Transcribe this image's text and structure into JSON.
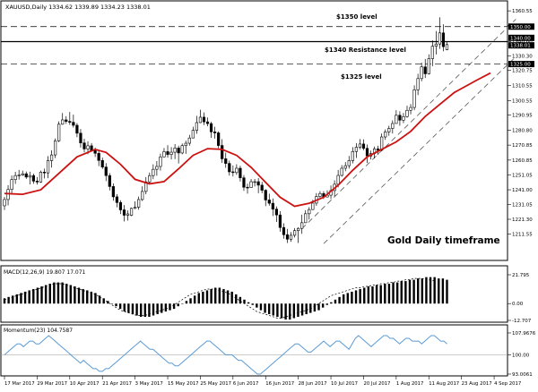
{
  "header": {
    "main_title": "XAUUSD,Daily 1334.62 1339.89 1334.23 1338.01",
    "macd_title": "MACD(12,26,9) 19.807 17.071",
    "momentum_title": "Momentum(23) 104.7587"
  },
  "annotations": {
    "level_1350": "$1350 level",
    "level_1340": "$1340 Resistance level",
    "level_1325": "$1325 level",
    "timeframe": "Gold Daily timeframe"
  },
  "badges": {
    "price_1350": "1350.00",
    "price_1340": "1340.00",
    "price_current": "1338.01",
    "price_1325": "1325.00"
  },
  "colors": {
    "up_candle": "#ffffff",
    "down_candle": "#000000",
    "moving_average": "#cc1111",
    "momentum_line": "#5b9bd5",
    "grid": "#c8c8c8"
  },
  "chart_data": {
    "type": "candlestick",
    "symbol": "XAUUSD",
    "timeframe": "Daily",
    "ylim": [
      1195,
      1366
    ],
    "y_ticks": [
      1360.55,
      1350.75,
      1340.0,
      1330.3,
      1320.75,
      1310.55,
      1300.55,
      1290.95,
      1280.8,
      1270.85,
      1260.85,
      1251.05,
      1241.0,
      1231.05,
      1221.3,
      1211.55
    ],
    "y_tick_labels": [
      "1360.55",
      "1350.75",
      "1340.00",
      "1330.30",
      "1320.75",
      "1310.55",
      "1300.55",
      "1290.95",
      "1280.80",
      "1270.85",
      "1260.85",
      "1251.05",
      "1241.00",
      "1231.05",
      "1221.30",
      "1211.55"
    ],
    "x_tick_labels": [
      "17 Mar 2017",
      "29 Mar 2017",
      "10 Apr 2017",
      "21 Apr 2017",
      "3 May 2017",
      "15 May 2017",
      "25 May 2017",
      "6 Jun 2017",
      "16 Jun 2017",
      "28 Jun 2017",
      "10 Jul 2017",
      "20 Jul 2017",
      "1 Aug 2017",
      "11 Aug 2017",
      "23 Aug 2017",
      "4 Sep 2017"
    ],
    "x_tick_index": [
      0,
      9,
      18,
      27,
      36,
      45,
      54,
      63,
      72,
      81,
      90,
      99,
      108,
      117,
      126,
      135
    ],
    "horizontal_levels": [
      {
        "value": 1350,
        "style": "dashed"
      },
      {
        "value": 1340,
        "style": "solid"
      },
      {
        "value": 1325,
        "style": "dashed"
      }
    ],
    "channel": {
      "upper": [
        [
          82,
          1215
        ],
        [
          141,
          1355
        ]
      ],
      "lower": [
        [
          88,
          1205
        ],
        [
          141,
          1330
        ]
      ]
    },
    "candles": [
      [
        1230.3,
        1236.2,
        1227.5,
        1234.5
      ],
      [
        1234.5,
        1244.1,
        1230.6,
        1241.2
      ],
      [
        1241.2,
        1250.5,
        1238.1,
        1247.8
      ],
      [
        1247.8,
        1253.0,
        1244.9,
        1250.5
      ],
      [
        1250.5,
        1254.3,
        1247.8,
        1250.8
      ],
      [
        1250.8,
        1253.8,
        1250.3,
        1251.7
      ],
      [
        1251.7,
        1253.2,
        1248.3,
        1249.5
      ],
      [
        1249.5,
        1253.1,
        1244.6,
        1250.5
      ],
      [
        1250.5,
        1251.8,
        1245.0,
        1246.8
      ],
      [
        1246.8,
        1249.5,
        1244.5,
        1246.2
      ],
      [
        1246.2,
        1253.8,
        1245.7,
        1252.8
      ],
      [
        1252.8,
        1255.2,
        1248.6,
        1252.3
      ],
      [
        1252.3,
        1263.5,
        1248.7,
        1260.5
      ],
      [
        1260.5,
        1267.4,
        1255.8,
        1264.3
      ],
      [
        1264.3,
        1275.3,
        1262.3,
        1273.7
      ],
      [
        1273.7,
        1286.7,
        1272.9,
        1284.8
      ],
      [
        1284.8,
        1292.3,
        1284.5,
        1287.7
      ],
      [
        1287.7,
        1290.2,
        1285.0,
        1286.7
      ],
      [
        1286.7,
        1293.0,
        1284.4,
        1286.1
      ],
      [
        1286.1,
        1291.2,
        1282.6,
        1284.1
      ],
      [
        1284.1,
        1285.5,
        1276.2,
        1278.8
      ],
      [
        1278.8,
        1281.6,
        1269.2,
        1272.3
      ],
      [
        1272.3,
        1275.1,
        1266.0,
        1268.3
      ],
      [
        1268.3,
        1273.4,
        1264.8,
        1270.4
      ],
      [
        1270.4,
        1272.2,
        1266.4,
        1267.2
      ],
      [
        1267.2,
        1269.2,
        1262.9,
        1265.4
      ],
      [
        1265.4,
        1267.5,
        1256.8,
        1260.6
      ],
      [
        1260.6,
        1262.5,
        1254.9,
        1256.2
      ],
      [
        1256.2,
        1258.8,
        1246.8,
        1250.5
      ],
      [
        1250.5,
        1252.1,
        1240.6,
        1243.2
      ],
      [
        1243.2,
        1245.2,
        1233.7,
        1236.3
      ],
      [
        1236.3,
        1238.1,
        1229.3,
        1232.5
      ],
      [
        1232.5,
        1234.0,
        1224.8,
        1227.6
      ],
      [
        1227.6,
        1230.8,
        1219.9,
        1224.0
      ],
      [
        1224.0,
        1227.2,
        1220.4,
        1224.9
      ],
      [
        1224.0,
        1229.1,
        1223.4,
        1228.6
      ],
      [
        1228.6,
        1233.3,
        1228.1,
        1229.4
      ],
      [
        1229.4,
        1236.5,
        1227.7,
        1234.5
      ],
      [
        1234.5,
        1243.3,
        1233.5,
        1239.9
      ],
      [
        1239.9,
        1249.5,
        1238.0,
        1246.3
      ],
      [
        1246.3,
        1252.5,
        1245.3,
        1250.5
      ],
      [
        1250.5,
        1258.0,
        1248.1,
        1254.7
      ],
      [
        1254.7,
        1260.2,
        1250.4,
        1256.6
      ],
      [
        1256.6,
        1265.2,
        1253.8,
        1263.0
      ],
      [
        1263.0,
        1268.9,
        1262.7,
        1266.5
      ],
      [
        1266.5,
        1270.8,
        1262.5,
        1264.6
      ],
      [
        1264.6,
        1269.5,
        1261.3,
        1266.1
      ],
      [
        1266.1,
        1271.5,
        1261.5,
        1268.9
      ],
      [
        1268.9,
        1270.5,
        1258.6,
        1265.6
      ],
      [
        1265.6,
        1271.9,
        1264.7,
        1270.5
      ],
      [
        1270.5,
        1273.8,
        1265.0,
        1272.1
      ],
      [
        1272.1,
        1277.7,
        1270.5,
        1275.6
      ],
      [
        1275.6,
        1283.1,
        1275.5,
        1280.7
      ],
      [
        1280.7,
        1290.4,
        1278.4,
        1285.9
      ],
      [
        1285.9,
        1294.5,
        1285.6,
        1289.5
      ],
      [
        1289.5,
        1292.7,
        1284.2,
        1286.4
      ],
      [
        1286.4,
        1289.3,
        1283.4,
        1285.2
      ],
      [
        1285.2,
        1286.4,
        1275.7,
        1279.7
      ],
      [
        1279.7,
        1283.1,
        1275.2,
        1279.0
      ],
      [
        1279.0,
        1280.0,
        1268.8,
        1270.6
      ],
      [
        1270.6,
        1274.8,
        1259.0,
        1261.7
      ],
      [
        1261.7,
        1265.8,
        1255.7,
        1258.6
      ],
      [
        1258.6,
        1260.5,
        1250.5,
        1253.0
      ],
      [
        1253.0,
        1257.3,
        1249.9,
        1252.5
      ],
      [
        1252.5,
        1258.1,
        1251.0,
        1255.4
      ],
      [
        1255.4,
        1257.1,
        1246.5,
        1249.0
      ],
      [
        1249.0,
        1250.8,
        1240.3,
        1242.7
      ],
      [
        1242.7,
        1245.1,
        1238.4,
        1242.5
      ],
      [
        1242.5,
        1248.2,
        1242.3,
        1246.4
      ],
      [
        1246.4,
        1248.2,
        1243.2,
        1246.4
      ],
      [
        1246.4,
        1248.8,
        1238.7,
        1244.1
      ],
      [
        1244.1,
        1246.3,
        1238.7,
        1240.7
      ],
      [
        1240.7,
        1241.4,
        1230.1,
        1234.2
      ],
      [
        1234.2,
        1238.4,
        1230.4,
        1232.0
      ],
      [
        1232.0,
        1235.2,
        1223.5,
        1228.1
      ],
      [
        1228.1,
        1229.9,
        1219.5,
        1224.2
      ],
      [
        1224.2,
        1226.7,
        1213.0,
        1215.8
      ],
      [
        1215.8,
        1218.6,
        1208.3,
        1211.0
      ],
      [
        1211.0,
        1214.9,
        1205.5,
        1208.0
      ],
      [
        1208.0,
        1212.7,
        1206.3,
        1210.6
      ],
      [
        1210.6,
        1215.4,
        1209.1,
        1213.7
      ],
      [
        1213.7,
        1216.0,
        1205.5,
        1215.2
      ],
      [
        1215.2,
        1224.4,
        1211.6,
        1219.0
      ],
      [
        1219.0,
        1227.4,
        1218.8,
        1225.0
      ],
      [
        1225.0,
        1229.4,
        1221.1,
        1227.8
      ],
      [
        1227.8,
        1234.3,
        1227.5,
        1232.1
      ],
      [
        1232.1,
        1238.8,
        1230.3,
        1236.5
      ],
      [
        1236.5,
        1240.1,
        1235.6,
        1238.5
      ],
      [
        1238.5,
        1240.1,
        1234.8,
        1236.2
      ],
      [
        1236.2,
        1240.6,
        1235.9,
        1237.4
      ],
      [
        1237.4,
        1243.9,
        1234.8,
        1240.5
      ],
      [
        1240.5,
        1247.3,
        1236.7,
        1244.7
      ],
      [
        1244.7,
        1254.3,
        1242.7,
        1250.6
      ],
      [
        1250.6,
        1257.5,
        1249.8,
        1255.4
      ],
      [
        1255.4,
        1259.5,
        1253.4,
        1257.1
      ],
      [
        1257.1,
        1263.6,
        1255.2,
        1260.5
      ],
      [
        1260.5,
        1269.5,
        1258.6,
        1266.6
      ],
      [
        1266.6,
        1272.2,
        1262.3,
        1269.4
      ],
      [
        1269.4,
        1274.9,
        1268.1,
        1271.6
      ],
      [
        1271.6,
        1274.7,
        1267.4,
        1268.7
      ],
      [
        1268.7,
        1271.2,
        1258.9,
        1263.6
      ],
      [
        1263.6,
        1267.2,
        1261.3,
        1265.2
      ],
      [
        1265.2,
        1269.9,
        1262.0,
        1268.3
      ],
      [
        1268.3,
        1270.4,
        1264.3,
        1267.4
      ],
      [
        1267.4,
        1278.6,
        1266.8,
        1276.3
      ],
      [
        1276.3,
        1281.3,
        1274.4,
        1279.7
      ],
      [
        1279.7,
        1283.8,
        1277.1,
        1282.0
      ],
      [
        1282.0,
        1287.4,
        1278.6,
        1285.3
      ],
      [
        1285.3,
        1294.2,
        1285.2,
        1290.8
      ],
      [
        1290.8,
        1293.4,
        1283.8,
        1287.5
      ],
      [
        1287.5,
        1292.3,
        1285.6,
        1289.9
      ],
      [
        1289.9,
        1297.2,
        1289.2,
        1294.1
      ],
      [
        1294.1,
        1298.3,
        1291.4,
        1296.0
      ],
      [
        1296.0,
        1310.8,
        1294.2,
        1307.8
      ],
      [
        1307.8,
        1318.5,
        1304.3,
        1315.3
      ],
      [
        1315.3,
        1326.0,
        1313.5,
        1323.1
      ],
      [
        1323.1,
        1328.4,
        1315.7,
        1318.5
      ],
      [
        1318.5,
        1331.5,
        1318.0,
        1328.6
      ],
      [
        1328.6,
        1340.8,
        1323.6,
        1336.9
      ],
      [
        1336.9,
        1347.1,
        1331.4,
        1338.4
      ],
      [
        1338.4,
        1356.2,
        1335.1,
        1345.8
      ],
      [
        1345.8,
        1351.6,
        1333.6,
        1336.6
      ],
      [
        1334.6,
        1339.9,
        1334.2,
        1338.0
      ]
    ],
    "moving_average": [
      [
        0,
        1238.5
      ],
      [
        5,
        1238.0
      ],
      [
        10,
        1241.0
      ],
      [
        15,
        1252.0
      ],
      [
        20,
        1263.0
      ],
      [
        25,
        1268.0
      ],
      [
        28,
        1266.0
      ],
      [
        32,
        1258.0
      ],
      [
        36,
        1248.0
      ],
      [
        40,
        1245.0
      ],
      [
        44,
        1246.5
      ],
      [
        48,
        1255.0
      ],
      [
        52,
        1264.0
      ],
      [
        56,
        1268.5
      ],
      [
        60,
        1268.0
      ],
      [
        64,
        1264.0
      ],
      [
        68,
        1256.0
      ],
      [
        72,
        1246.0
      ],
      [
        76,
        1236.0
      ],
      [
        80,
        1230.0
      ],
      [
        84,
        1232.0
      ],
      [
        88,
        1236.0
      ],
      [
        92,
        1244.0
      ],
      [
        96,
        1254.0
      ],
      [
        100,
        1263.0
      ],
      [
        104,
        1268.0
      ],
      [
        108,
        1273.0
      ],
      [
        112,
        1280.0
      ],
      [
        116,
        1290.0
      ],
      [
        120,
        1298.0
      ],
      [
        124,
        1306.0
      ],
      [
        130,
        1314.0
      ],
      [
        134,
        1319.0
      ]
    ],
    "macd": {
      "ylim": [
        -12.707,
        21.795
      ],
      "y_tick_labels": [
        "21.795",
        "0.00",
        "-12.707"
      ],
      "histogram": [
        4,
        5,
        6,
        7,
        8,
        9,
        10,
        11,
        12,
        13,
        14,
        15,
        16,
        16,
        16,
        15,
        14,
        13,
        12,
        11,
        10,
        9,
        8,
        6,
        4,
        2,
        0,
        -2,
        -4,
        -6,
        -7,
        -8,
        -9,
        -10,
        -10,
        -10,
        -9,
        -8,
        -7,
        -6,
        -5,
        -4,
        -2,
        0,
        2,
        4,
        6,
        8,
        9,
        10,
        11,
        12,
        12,
        11,
        10,
        9,
        7,
        5,
        3,
        1,
        -1,
        -3,
        -5,
        -7,
        -8,
        -9,
        -10,
        -11,
        -12,
        -12,
        -11,
        -10,
        -9,
        -8,
        -7,
        -6,
        -5,
        -3,
        -1,
        1,
        3,
        5,
        7,
        8,
        9,
        10,
        11,
        12,
        13,
        13,
        14,
        14,
        15,
        15,
        16,
        16,
        17,
        17,
        18,
        18,
        19,
        19,
        20,
        20,
        20,
        19,
        19,
        18
      ],
      "signal": [
        3,
        4,
        5,
        6,
        7,
        8,
        9,
        10,
        11,
        12,
        13,
        14,
        15,
        15,
        15,
        14,
        13,
        12,
        11,
        10,
        9,
        8,
        7,
        5,
        3,
        1,
        -1,
        -3,
        -5,
        -6,
        -7,
        -8,
        -9,
        -9,
        -9,
        -8,
        -7,
        -6,
        -5,
        -4,
        -3,
        -1,
        1,
        3,
        5,
        7,
        8,
        9,
        10,
        11,
        11,
        11,
        10,
        9,
        8,
        6,
        4,
        2,
        0,
        -2,
        -4,
        -6,
        -7,
        -8,
        -9,
        -10,
        -11,
        -11,
        -10,
        -9,
        -8,
        -7,
        -6,
        -5,
        -4,
        -2,
        0,
        2,
        4,
        6,
        7,
        8,
        9,
        10,
        11,
        12,
        12,
        13,
        13,
        14,
        14,
        15,
        15,
        16,
        16,
        17,
        17,
        18,
        18,
        19,
        19,
        19,
        18,
        18,
        17
      ]
    },
    "momentum": {
      "ylim": [
        93.0061,
        107.9676
      ],
      "y_tick_labels": [
        "107.9676",
        "100.00",
        "93.0061"
      ],
      "values": [
        100,
        101,
        102,
        103,
        104,
        104,
        103,
        104,
        105,
        105,
        104,
        104,
        105,
        106,
        107,
        106,
        105,
        104,
        103,
        102,
        101,
        100,
        99,
        98,
        97,
        98,
        97,
        96,
        95,
        95,
        94,
        94,
        95,
        95,
        96,
        97,
        98,
        99,
        100,
        101,
        102,
        103,
        104,
        105,
        104,
        103,
        102,
        102,
        101,
        100,
        99,
        98,
        97,
        97,
        96,
        96,
        97,
        98,
        99,
        100,
        101,
        102,
        103,
        104,
        105,
        105,
        104,
        103,
        102,
        101,
        100,
        100,
        100,
        99,
        98,
        98,
        97,
        96,
        95,
        94,
        93,
        93,
        94,
        95,
        96,
        97,
        98,
        99,
        100,
        101,
        102,
        103,
        104,
        104,
        103,
        102,
        101,
        101,
        102,
        103,
        104,
        105,
        104,
        103,
        104,
        105,
        105,
        104,
        103,
        102,
        104,
        106,
        107,
        106,
        105,
        104,
        103,
        104,
        105,
        106,
        107,
        107,
        106,
        106,
        105,
        104,
        105,
        106,
        106,
        105,
        105,
        105,
        104,
        105,
        106,
        107,
        107,
        106,
        105,
        105,
        104
      ]
    }
  }
}
